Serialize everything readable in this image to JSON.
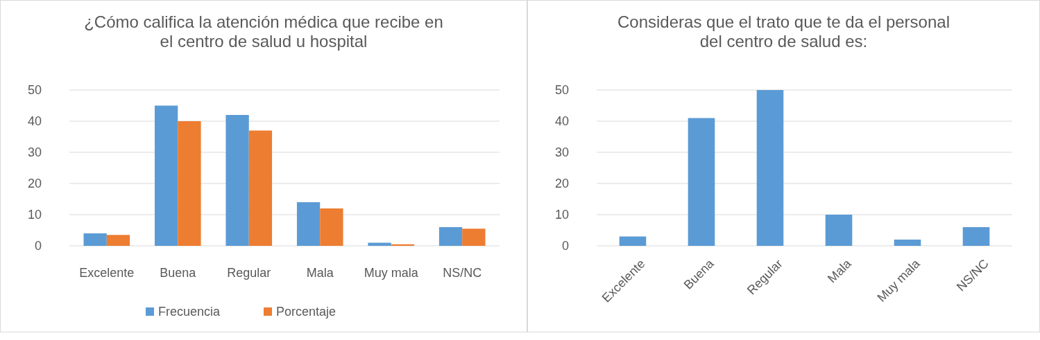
{
  "chart_data": [
    {
      "type": "bar",
      "title": "¿Cómo califica la atención médica que recibe en el centro de salud u hospital",
      "categories": [
        "Excelente",
        "Buena",
        "Regular",
        "Mala",
        "Muy mala",
        "NS/NC"
      ],
      "series": [
        {
          "name": "Frecuencia",
          "color": "#5b9bd5",
          "values": [
            4,
            45,
            42,
            14,
            1,
            6
          ]
        },
        {
          "name": "Porcentaje",
          "color": "#ed7d31",
          "values": [
            3.5,
            40,
            37,
            12,
            0.5,
            5.5
          ]
        }
      ],
      "ylim": [
        0,
        50
      ],
      "yticks": [
        0,
        10,
        20,
        30,
        40,
        50
      ],
      "grid": "y",
      "legend": "bottom"
    },
    {
      "type": "bar",
      "title": "Consideras que el trato que te da el personal del centro de salud es:",
      "categories": [
        "Excelente",
        "Buena",
        "Regular",
        "Mala",
        "Muy mala",
        "NS/NC"
      ],
      "series": [
        {
          "color": "#5b9bd5",
          "values": [
            3,
            41,
            50,
            10,
            2,
            6
          ]
        }
      ],
      "ylim": [
        0,
        50
      ],
      "yticks": [
        0,
        10,
        20,
        30,
        40,
        50
      ],
      "grid": "y",
      "legend": false
    }
  ]
}
